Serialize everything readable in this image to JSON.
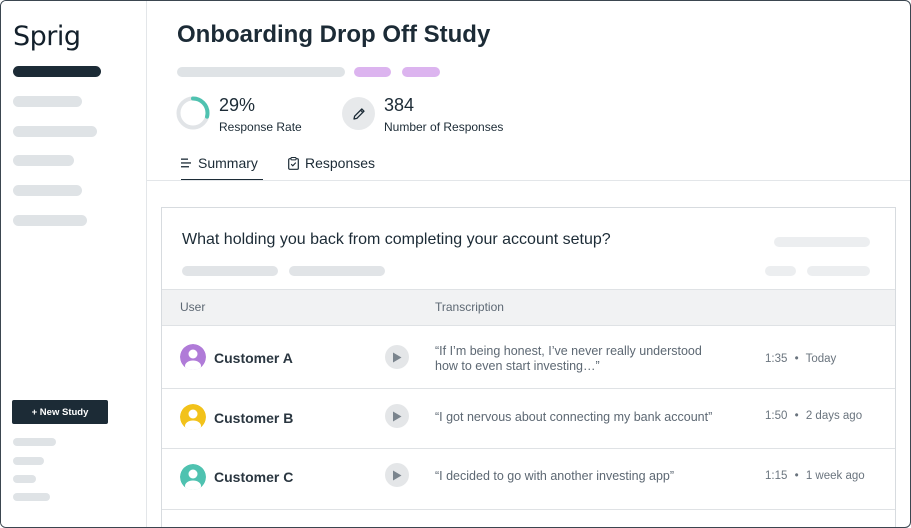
{
  "app": {
    "logo": "Sprig",
    "new_study_label": "+ New Study"
  },
  "study": {
    "title": "Onboarding Drop Off Study",
    "response_rate": {
      "value": "29%",
      "label": "Response Rate",
      "fraction": 0.29
    },
    "responses": {
      "value": "384",
      "label": "Number of Responses"
    }
  },
  "tabs": [
    {
      "label": "Summary",
      "icon": "list-icon",
      "active": true
    },
    {
      "label": "Responses",
      "icon": "clipboard-icon",
      "active": false
    }
  ],
  "card": {
    "question": "What holding you back from completing your account setup?",
    "columns": {
      "user": "User",
      "transcription": "Transcription"
    },
    "rows": [
      {
        "user": "Customer A",
        "avatar_color": "#b07bd8",
        "quote_line1": "“If I’m being honest, I’ve never really understood",
        "quote_line2": "how to even start investing…”",
        "duration": "1:35",
        "when": "Today"
      },
      {
        "user": "Customer B",
        "avatar_color": "#f2c21a",
        "quote_line1": "“I got nervous about connecting my bank account”",
        "quote_line2": "",
        "duration": "1:50",
        "when": "2 days ago"
      },
      {
        "user": "Customer C",
        "avatar_color": "#4fc2b0",
        "quote_line1": "“I decided to go with another investing app”",
        "quote_line2": "",
        "duration": "1:15",
        "when": "1 week ago"
      }
    ],
    "meta_separator": "•"
  },
  "colors": {
    "primary": "#1c2b36",
    "accent_purple": "#dcb4ef",
    "ring_teal": "#4fc2b0",
    "placeholder": "#dfe3e6"
  }
}
